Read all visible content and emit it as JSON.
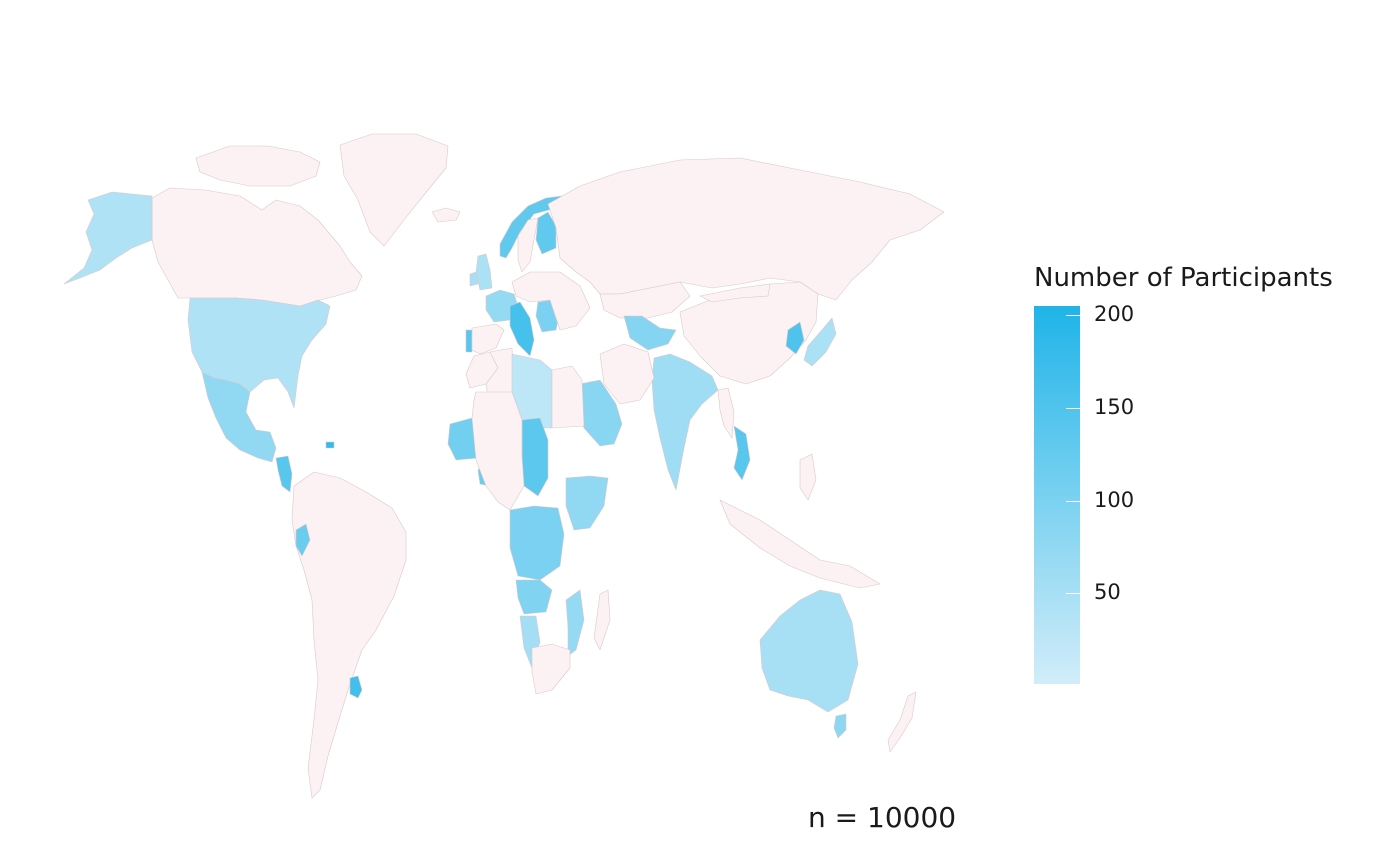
{
  "legend": {
    "title": "Number of Participants",
    "min": 1,
    "max": 205,
    "low_color": "#d2edf9",
    "high_color": "#1fb4e8",
    "ticks": [
      {
        "value": 200,
        "label": "200"
      },
      {
        "value": 150,
        "label": "150"
      },
      {
        "value": 100,
        "label": "100"
      },
      {
        "value": 50,
        "label": "50"
      }
    ]
  },
  "no_data_color": "#fcf1f3",
  "sample_label": "n = 10000",
  "countries": [
    {
      "name": "Canada",
      "value": null
    },
    {
      "name": "Greenland",
      "value": null
    },
    {
      "name": "Arctic Islands",
      "value": null
    },
    {
      "name": "Alaska (USA)",
      "value": 40
    },
    {
      "name": "United States",
      "value": 40
    },
    {
      "name": "Mexico",
      "value": 75
    },
    {
      "name": "Guatemala",
      "value": 140
    },
    {
      "name": "Dominican Republic",
      "value": 180
    },
    {
      "name": "South America",
      "value": null
    },
    {
      "name": "Ecuador",
      "value": 120
    },
    {
      "name": "Uruguay",
      "value": 165
    },
    {
      "name": "Iceland",
      "value": null
    },
    {
      "name": "United Kingdom",
      "value": 45
    },
    {
      "name": "Ireland",
      "value": 50
    },
    {
      "name": "Norway",
      "value": 130
    },
    {
      "name": "Sweden",
      "value": null
    },
    {
      "name": "Finland",
      "value": 130
    },
    {
      "name": "France",
      "value": 70
    },
    {
      "name": "Portugal",
      "value": 140
    },
    {
      "name": "Spain",
      "value": null
    },
    {
      "name": "Italy",
      "value": 160
    },
    {
      "name": "Romania",
      "value": 100
    },
    {
      "name": "Europe (other)",
      "value": null
    },
    {
      "name": "Russia",
      "value": null
    },
    {
      "name": "Kazakhstan",
      "value": null
    },
    {
      "name": "China",
      "value": null
    },
    {
      "name": "Mongolia",
      "value": null
    },
    {
      "name": "Pakistan",
      "value": 90
    },
    {
      "name": "India",
      "value": 60
    },
    {
      "name": "Myanmar",
      "value": null
    },
    {
      "name": "Vietnam",
      "value": 140
    },
    {
      "name": "Korea",
      "value": 150
    },
    {
      "name": "Japan",
      "value": 45
    },
    {
      "name": "Indonesia",
      "value": null
    },
    {
      "name": "Philippines",
      "value": null
    },
    {
      "name": "Saudi Arabia",
      "value": 85
    },
    {
      "name": "Iran",
      "value": null
    },
    {
      "name": "Morocco",
      "value": null
    },
    {
      "name": "Algeria",
      "value": null
    },
    {
      "name": "Libya",
      "value": 25
    },
    {
      "name": "Egypt",
      "value": null
    },
    {
      "name": "Mali",
      "value": 110
    },
    {
      "name": "Ghana",
      "value": 120
    },
    {
      "name": "Sudan",
      "value": 135
    },
    {
      "name": "DR Congo",
      "value": 100
    },
    {
      "name": "Angola",
      "value": 95
    },
    {
      "name": "Namibia",
      "value": 55
    },
    {
      "name": "Mozambique",
      "value": 70
    },
    {
      "name": "Kenya",
      "value": 75
    },
    {
      "name": "South Africa",
      "value": null
    },
    {
      "name": "Madagascar",
      "value": null
    },
    {
      "name": "Africa (other)",
      "value": null
    },
    {
      "name": "Australia",
      "value": 50
    },
    {
      "name": "Tasmania",
      "value": 80
    },
    {
      "name": "New Zealand",
      "value": null
    }
  ]
}
